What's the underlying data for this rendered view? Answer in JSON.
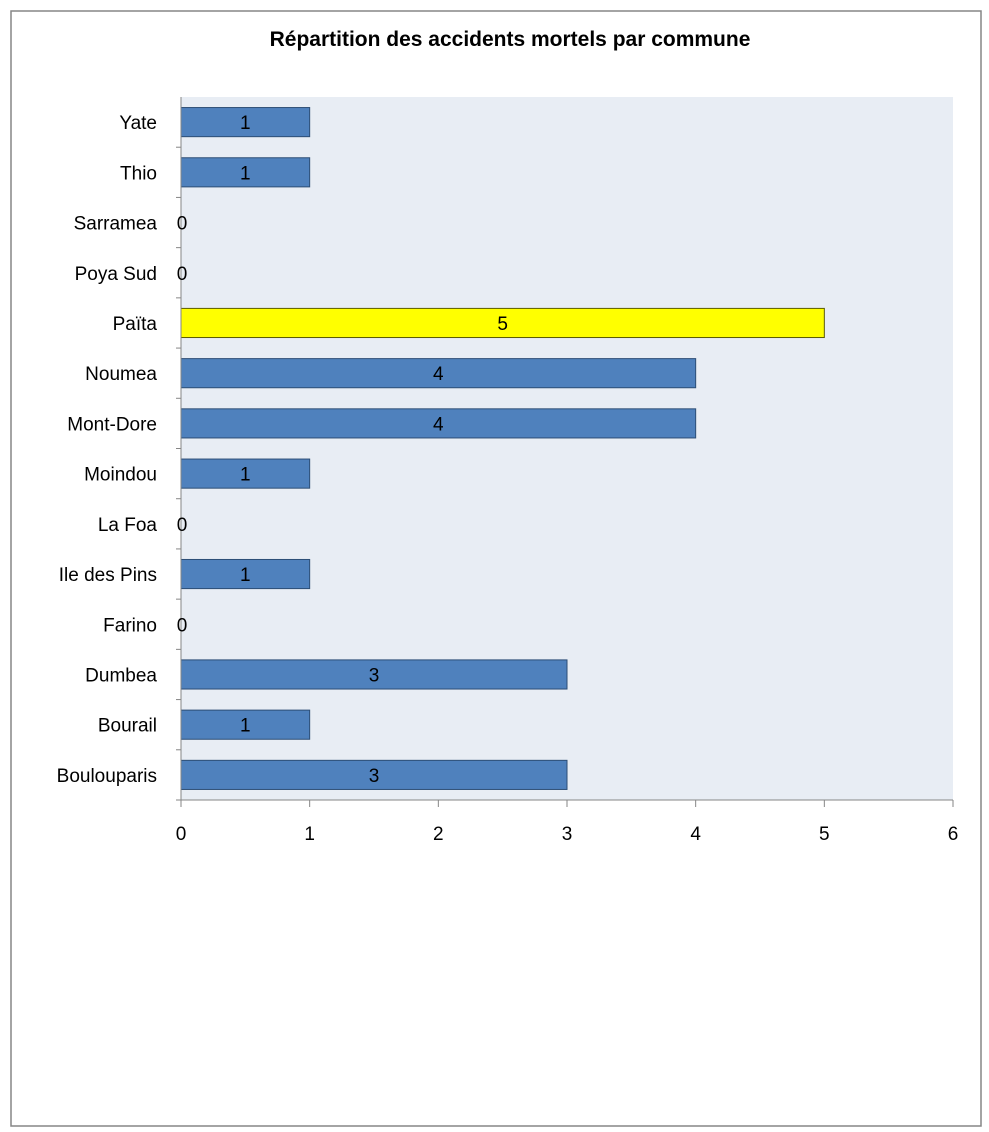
{
  "chart_data": {
    "type": "bar",
    "orientation": "horizontal",
    "title": "Répartition des accidents mortels par commune",
    "xlabel": "",
    "ylabel": "",
    "categories": [
      "Boulouparis",
      "Bourail",
      "Dumbea",
      "Farino",
      "Ile des Pins",
      "La Foa",
      "Moindou",
      "Mont-Dore",
      "Noumea",
      "Païta",
      "Poya Sud",
      "Sarramea",
      "Thio",
      "Yate"
    ],
    "values": [
      3,
      1,
      3,
      0,
      1,
      0,
      1,
      4,
      4,
      5,
      0,
      0,
      1,
      1
    ],
    "data_labels": [
      "3",
      "1",
      "3",
      "0",
      "1",
      "0",
      "1",
      "4",
      "4",
      "5",
      "0",
      "0",
      "1",
      "1"
    ],
    "xlim": [
      0,
      6
    ],
    "x_ticks": [
      "0",
      "1",
      "2",
      "3",
      "4",
      "5",
      "6"
    ],
    "grid": false,
    "legend": "none",
    "highlight_category": "Païta",
    "colors": {
      "bar": "#4f81bd",
      "bar_border": "#2c4d75",
      "highlight": "#ffff00",
      "highlight_border": "#5a5a00",
      "plot_background": "#e8edf4",
      "axis": "#868686",
      "frame": "#868686"
    }
  }
}
